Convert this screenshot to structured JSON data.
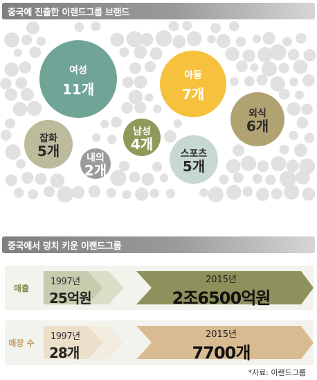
{
  "header1": {
    "title": "중국에 진출한 이랜드그룹 브랜드"
  },
  "header2": {
    "title": "중국에서 덩치 키운 이랜드그룹"
  },
  "chart_data": [
    {
      "type": "bubble",
      "unit": "개",
      "categories": [
        "여성",
        "아동",
        "외식",
        "잡화",
        "남성",
        "스포츠",
        "내의"
      ],
      "values": [
        11,
        7,
        6,
        5,
        4,
        5,
        2
      ],
      "colors": [
        "#6fa496",
        "#f6c23e",
        "#b1a272",
        "#bcbb9c",
        "#8f9a5a",
        "#c7d8d1",
        "#9c9b9b"
      ]
    },
    {
      "type": "table",
      "rows": [
        {
          "metric": "매출",
          "year_from": "1997년",
          "value_from": "25억원",
          "year_to": "2015년",
          "value_to": "2조6500억원",
          "color": "#8e915b",
          "light": "#c9cbae",
          "lighter": "#dcdec8",
          "label_color": "#7f8a4e"
        },
        {
          "metric": "매장 수",
          "year_from": "1997년",
          "value_from": "28개",
          "year_to": "2015년",
          "value_to": "7700개",
          "color": "#d9bb91",
          "light": "#ece0cb",
          "lighter": "#f3ede1",
          "label_color": "#c59b63"
        }
      ]
    }
  ],
  "labels": {
    "sales": {
      "metric": "매출",
      "year_from": "1997년",
      "value_from": "25억원",
      "year_to": "2015년",
      "value_to": "2조6500억원"
    },
    "stores": {
      "metric": "매장 수",
      "year_from": "1997년",
      "value_from": "28개",
      "year_to": "2015년",
      "value_to": "7700개"
    }
  },
  "source": "*자료: 이랜드그룹"
}
